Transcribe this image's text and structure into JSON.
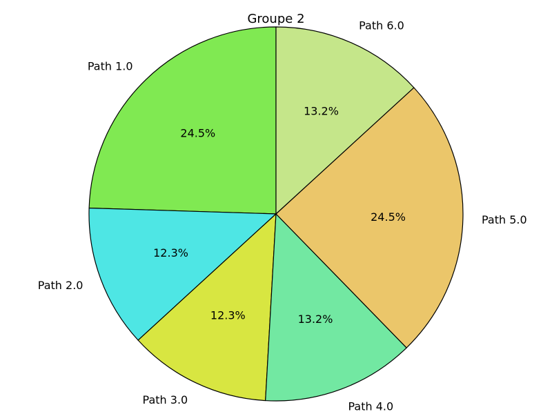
{
  "chart_data": {
    "type": "pie",
    "title": "Groupe 2",
    "start_angle_deg": 90,
    "direction": "counterclockwise",
    "slices": [
      {
        "label": "Path 1.0",
        "value": 24.5,
        "pct_label": "24.5%",
        "color": "#80e952"
      },
      {
        "label": "Path 2.0",
        "value": 12.3,
        "pct_label": "12.3%",
        "color": "#4ee6e4"
      },
      {
        "label": "Path 3.0",
        "value": 12.3,
        "pct_label": "12.3%",
        "color": "#d8e641"
      },
      {
        "label": "Path 4.0",
        "value": 13.2,
        "pct_label": "13.2%",
        "color": "#72e8a2"
      },
      {
        "label": "Path 5.0",
        "value": 24.5,
        "pct_label": "24.5%",
        "color": "#ebc66a"
      },
      {
        "label": "Path 6.0",
        "value": 13.2,
        "pct_label": "13.2%",
        "color": "#c5e68a"
      }
    ]
  }
}
